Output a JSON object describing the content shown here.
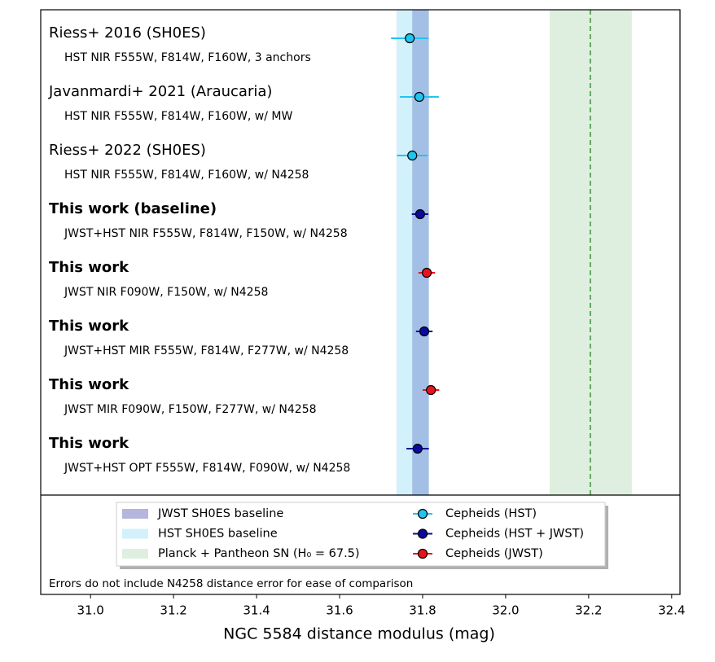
{
  "chart_data": {
    "type": "forest",
    "xlabel": "NGC 5584 distance modulus (mag)",
    "xlim": [
      30.88,
      32.42
    ],
    "xticks": [
      {
        "value": 31,
        "label": "31.0"
      },
      31.2,
      31.4,
      31.6,
      31.8,
      {
        "value": 32,
        "label": "32.0"
      },
      32.2,
      32.4
    ],
    "categories": [
      "Riess+ 2016 (SH0ES)",
      "Javanmardi+ 2021 (Araucaria)",
      "Riess+ 2022 (SH0ES)",
      "This work (baseline)",
      "This work",
      "This work",
      "This work",
      "This work"
    ],
    "sublabels": [
      "HST NIR F555W, F814W, F160W, 3 anchors",
      "HST NIR F555W, F814W, F160W, w/ MW",
      "HST NIR F555W, F814W, F160W, w/ N4258",
      "JWST+HST NIR F555W, F814W, F150W, w/ N4258",
      "JWST NIR F090W, F150W, w/ N4258",
      "JWST+HST MIR F555W, F814W, F277W, w/ N4258",
      "JWST MIR F090W, F150W, F277W, w/ N4258",
      "JWST+HST OPT F555W, F814W, F090W, w/ N4258"
    ],
    "bold": [
      false,
      false,
      false,
      true,
      true,
      true,
      true,
      true
    ],
    "values": [
      31.769,
      31.792,
      31.775,
      31.794,
      31.81,
      31.804,
      31.82,
      31.788
    ],
    "errors": [
      0.045,
      0.047,
      0.037,
      0.02,
      0.02,
      0.02,
      0.02,
      0.027
    ],
    "marker_group": [
      0,
      0,
      0,
      1,
      2,
      1,
      2,
      1
    ],
    "markers": [
      {
        "name": "Cepheids (HST)",
        "color": "#22c4ee",
        "bar_color": "#22c4ee"
      },
      {
        "name": "Cepheids (HST + JWST)",
        "color": "#0a0a9e",
        "bar_color": "#0a0a9e"
      },
      {
        "name": "Cepheids (JWST)",
        "color": "#e8141c",
        "bar_color": "#e8141c"
      }
    ],
    "bands": [
      {
        "name": "JWST SH0ES baseline",
        "color": "#a3bfe6",
        "swatch": "#b5b5dd",
        "range": [
          31.775,
          31.815
        ]
      },
      {
        "name": "HST SH0ES baseline",
        "color": "#d3f1fb",
        "swatch": "#d3f1fb",
        "range": [
          31.737,
          31.815
        ]
      },
      {
        "name": "Planck + Pantheon SN (H₀ = 67.5)",
        "color": "#dfefdf",
        "swatch": "#dfefdf",
        "range": [
          32.106,
          32.304
        ],
        "line": 32.204,
        "line_color": "#3a913a"
      }
    ],
    "note": "Errors do not include N4258 distance error for ease of comparison"
  }
}
